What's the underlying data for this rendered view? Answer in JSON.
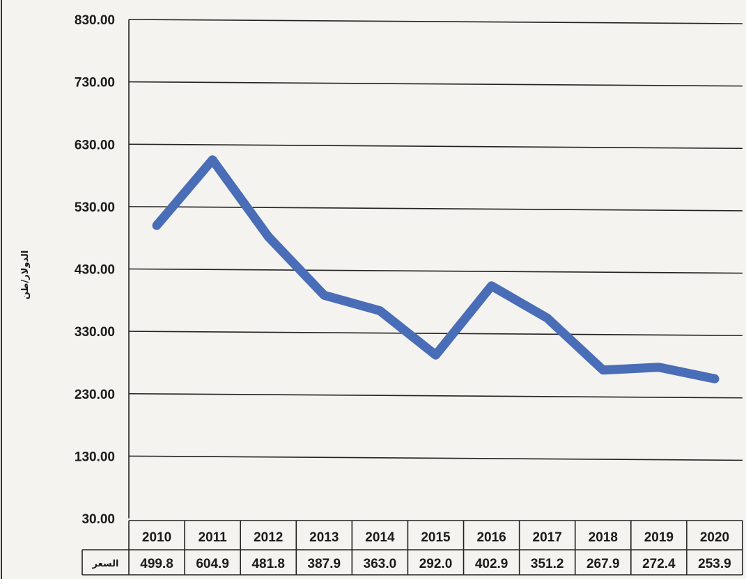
{
  "chart_data": {
    "type": "line",
    "ylabel": "الدولار/طن",
    "ylim": [
      30,
      830
    ],
    "y_ticks": [
      "830.00",
      "730.00",
      "630.00",
      "530.00",
      "430.00",
      "330.00",
      "230.00",
      "130.00",
      "30.00"
    ],
    "grid": true,
    "categories": [
      "2010",
      "2011",
      "2012",
      "2013",
      "2014",
      "2015",
      "2016",
      "2017",
      "2018",
      "2019",
      "2020"
    ],
    "series": [
      {
        "name": "السعر",
        "values": [
          499.8,
          604.9,
          481.8,
          387.9,
          363.0,
          292.0,
          402.9,
          351.2,
          267.9,
          272.4,
          253.9
        ],
        "labels": [
          "499.8",
          "604.9",
          "481.8",
          "387.9",
          "363.0",
          "292.0",
          "402.9",
          "351.2",
          "267.9",
          "272.4",
          "253.9"
        ]
      }
    ],
    "line_color": "#4a6db8",
    "data_table": true
  }
}
